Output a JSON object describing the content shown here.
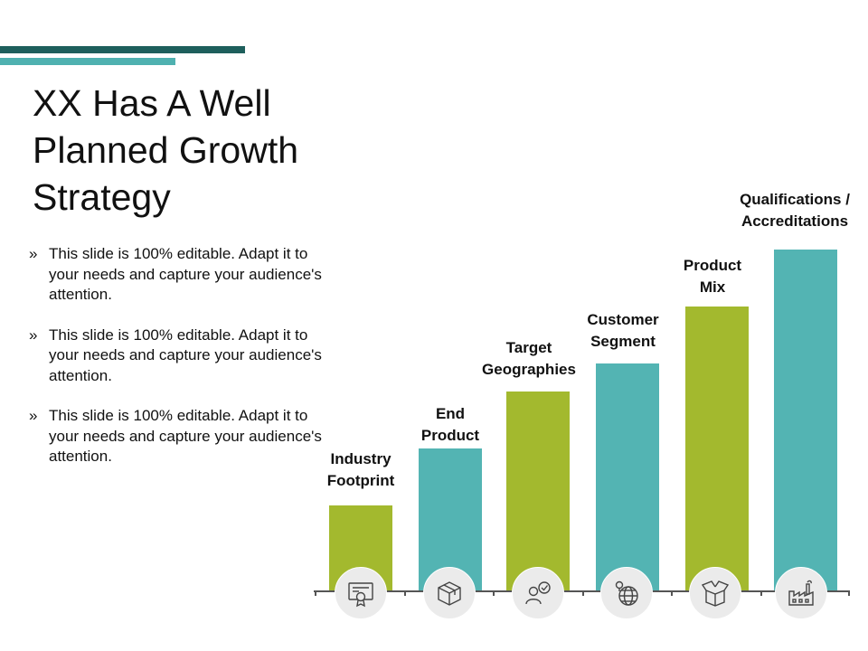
{
  "slide": {
    "title": "XX Has A Well Planned Growth Strategy",
    "accent_dark": "#1e5f5c",
    "accent_light": "#4fb1b0"
  },
  "bullets": [
    {
      "marker": "»",
      "text": "This slide is 100% editable. Adapt it to your needs and capture your audience's attention."
    },
    {
      "marker": "»",
      "text": "This slide is 100% editable. Adapt it to your needs and capture your audience's attention."
    },
    {
      "marker": "»",
      "text": "This slide is 100% editable. Adapt it to your needs and capture your audience's attention."
    }
  ],
  "steps": [
    {
      "label_line1": "Industry",
      "label_line2": "Footprint",
      "color": "#a3b92e",
      "icon": "certificate-icon"
    },
    {
      "label_line1": "End",
      "label_line2": "Product",
      "color": "#53b4b3",
      "icon": "box-icon"
    },
    {
      "label_line1": "Target",
      "label_line2": "Geographies",
      "color": "#a3b92e",
      "icon": "user-check-icon"
    },
    {
      "label_line1": "Customer",
      "label_line2": "Segment",
      "color": "#53b4b3",
      "icon": "globe-pin-icon"
    },
    {
      "label_line1": "Product",
      "label_line2": "Mix",
      "color": "#a3b92e",
      "icon": "open-box-icon"
    },
    {
      "label_line1": "Qualifications /",
      "label_line2": "Accreditations",
      "color": "#53b4b3",
      "icon": "factory-icon"
    }
  ]
}
